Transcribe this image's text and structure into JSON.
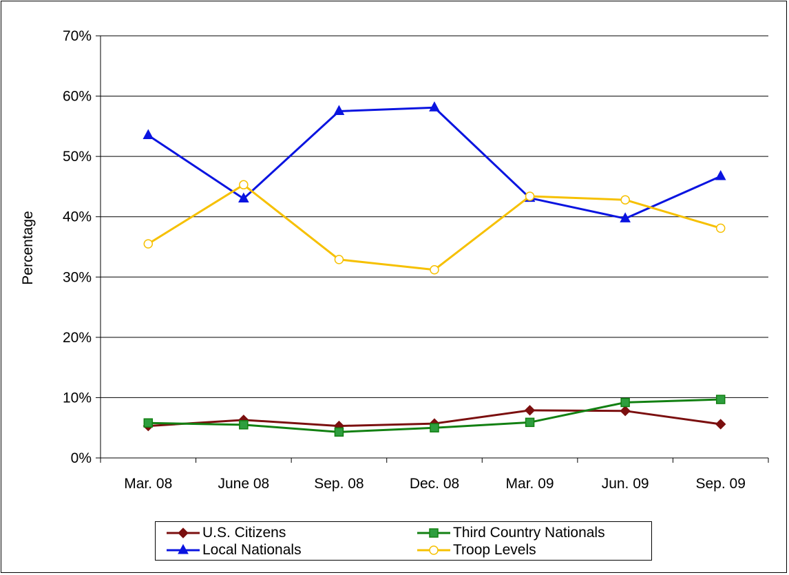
{
  "chart_data": {
    "type": "line",
    "title": "",
    "xlabel": "",
    "ylabel": "Percentage",
    "ylim": [
      0,
      70
    ],
    "yticks": [
      "0%",
      "10%",
      "20%",
      "30%",
      "40%",
      "50%",
      "60%",
      "70%"
    ],
    "grid": "horizontal",
    "legend_position": "bottom",
    "categories": [
      "Mar. 08",
      "June 08",
      "Sep. 08",
      "Dec. 08",
      "Mar. 09",
      "Jun. 09",
      "Sep. 09"
    ],
    "series": [
      {
        "name": "U.S. Citizens",
        "color": "#7b0f0f",
        "marker": "diamond",
        "values": [
          5.3,
          6.3,
          5.3,
          5.7,
          7.9,
          7.8,
          5.6
        ]
      },
      {
        "name": "Third Country Nationals",
        "color": "#128012",
        "marker": "square",
        "marker_fill": "#2e9e3e",
        "values": [
          5.8,
          5.5,
          4.3,
          5.0,
          5.9,
          9.2,
          9.7
        ]
      },
      {
        "name": "Local Nationals",
        "color": "#0a14e0",
        "marker": "triangle",
        "values": [
          53.5,
          43.0,
          57.5,
          58.1,
          43.1,
          39.7,
          46.7
        ]
      },
      {
        "name": "Troop Levels",
        "color": "#f6c000",
        "marker": "circle-open",
        "values": [
          35.5,
          45.3,
          32.9,
          31.2,
          43.4,
          42.8,
          38.1
        ]
      }
    ]
  }
}
